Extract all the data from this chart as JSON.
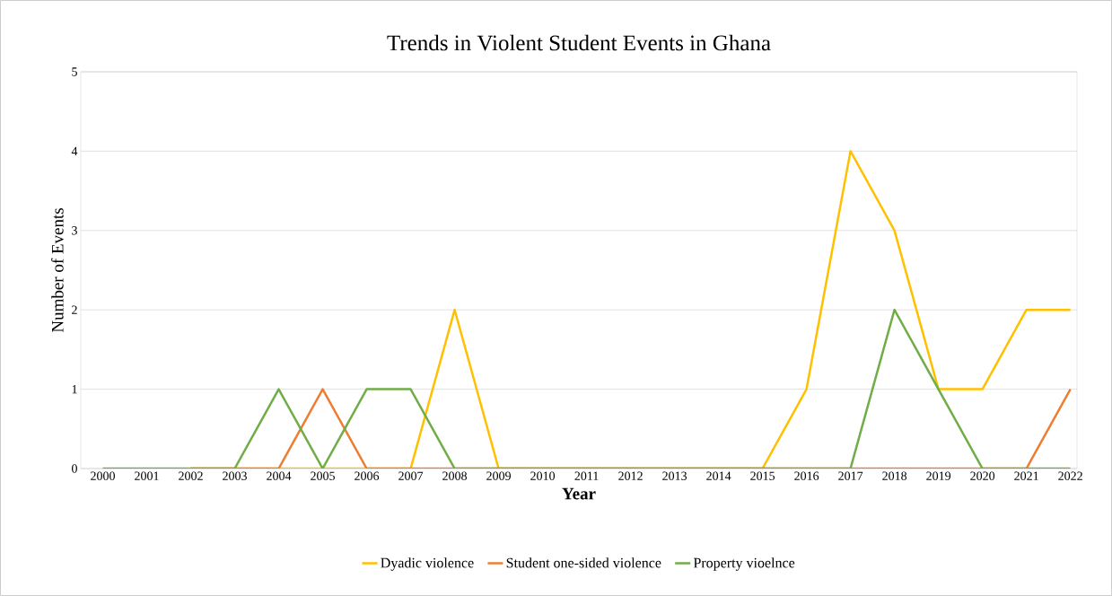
{
  "chart_data": {
    "type": "line",
    "title": "Trends in Violent Student Events in Ghana",
    "xlabel": "Year",
    "ylabel": "Number of Events",
    "categories": [
      "2000",
      "2001",
      "2002",
      "2003",
      "2004",
      "2005",
      "2006",
      "2007",
      "2008",
      "2009",
      "2010",
      "2011",
      "2012",
      "2013",
      "2014",
      "2015",
      "2016",
      "2017",
      "2018",
      "2019",
      "2020",
      "2021",
      "2022"
    ],
    "series": [
      {
        "name": "Dyadic violence",
        "color": "#ffc000",
        "values": [
          null,
          null,
          0,
          0,
          0,
          0,
          0,
          0,
          2,
          0,
          0,
          0,
          0,
          0,
          0,
          0,
          1,
          4,
          3,
          1,
          1,
          2,
          2
        ]
      },
      {
        "name": "Student one-sided violence",
        "color": "#ed7d31",
        "values": [
          null,
          null,
          0,
          0,
          0,
          1,
          0,
          0,
          0,
          0,
          0,
          0,
          0,
          0,
          0,
          0,
          0,
          0,
          0,
          0,
          0,
          0,
          1
        ]
      },
      {
        "name": "Property vioelnce",
        "color": "#70ad47",
        "values": [
          0,
          0,
          0,
          0,
          1,
          0,
          1,
          1,
          0,
          0,
          0,
          0,
          0,
          0,
          0,
          0,
          0,
          0,
          2,
          1,
          0,
          0,
          0
        ]
      }
    ],
    "ylim": [
      0,
      5
    ],
    "yticks": [
      0,
      1,
      2,
      3,
      4,
      5
    ],
    "grid": "y",
    "legend": "bottom"
  }
}
